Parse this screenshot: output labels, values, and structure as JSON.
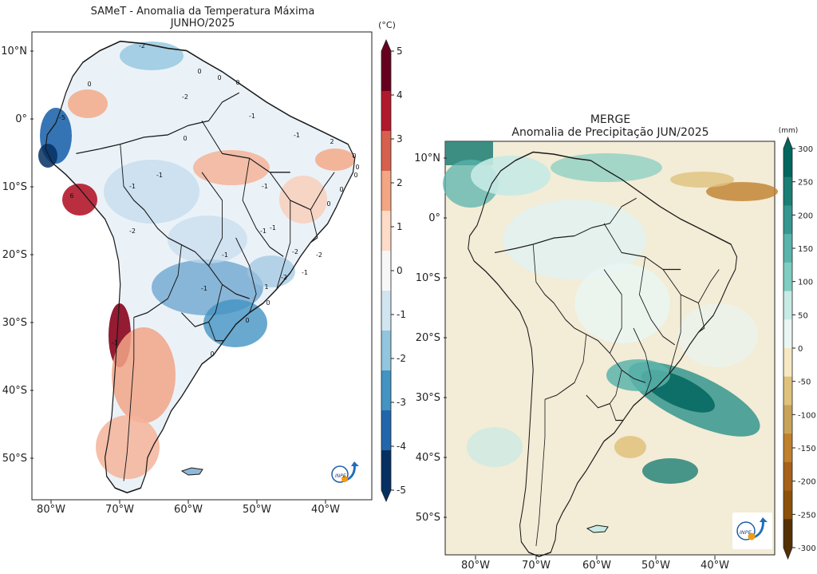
{
  "left_map": {
    "title": "SAMeT - Anomalia da Temperatura Máxima",
    "subtitle": "JUNHO/2025",
    "lat_labels": [
      "10°N",
      "0°",
      "10°S",
      "20°S",
      "30°S",
      "40°S",
      "50°S"
    ],
    "lon_labels": [
      "80°W",
      "70°W",
      "60°W",
      "50°W",
      "40°W"
    ],
    "colorbar": {
      "unit": "(°C)",
      "ticks": [
        "5",
        "4",
        "3",
        "2",
        "1",
        "0",
        "-1",
        "-2",
        "-3",
        "-4",
        "-5"
      ],
      "colors": [
        "#67001f",
        "#b2182b",
        "#d6604d",
        "#f4a582",
        "#fddbc7",
        "#f7f7f7",
        "#d1e5f0",
        "#92c5de",
        "#4393c3",
        "#2166ac",
        "#053061"
      ]
    },
    "contour_labels": [
      "-2",
      "0",
      "0",
      "0",
      "0",
      "-2",
      "-5",
      "0",
      "-1",
      "-1",
      "2",
      "0",
      "0",
      "0",
      "0",
      "-1",
      "-1",
      "-1",
      "0",
      "-1",
      "-1",
      "-2",
      "-1",
      "-2",
      "-2",
      "-1",
      "-2",
      "1",
      "6",
      "-1",
      "0",
      "0",
      "0",
      "-1"
    ],
    "logo": "INPE"
  },
  "right_map": {
    "title": "MERGE",
    "subtitle": "Anomalia de Precipitação JUN/2025",
    "lat_labels": [
      "10°N",
      "0°",
      "10°S",
      "20°S",
      "30°S",
      "40°S",
      "50°S"
    ],
    "lon_labels": [
      "80°W",
      "70°W",
      "60°W",
      "50°W",
      "40°W"
    ],
    "colorbar": {
      "unit": "(mm)",
      "ticks": [
        "300",
        "250",
        "200",
        "150",
        "100",
        "50",
        "0",
        "-50",
        "-100",
        "-150",
        "-200",
        "-250",
        "-300"
      ],
      "colors": [
        "#01665e",
        "#1b7e74",
        "#35978f",
        "#5ab4ac",
        "#80cdc1",
        "#c7eae5",
        "#e9f6f3",
        "#f6e8c3",
        "#dfc27d",
        "#c9a35a",
        "#bf812d",
        "#a6611a",
        "#8c510a",
        "#543005"
      ]
    },
    "logo": "INPE"
  },
  "colors": {
    "land_neutral": "#eef4f8",
    "ocean_precip": "#f3ecd6",
    "border": "#1a1a1a"
  }
}
